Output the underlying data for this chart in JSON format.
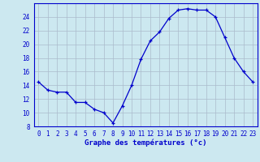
{
  "x": [
    0,
    1,
    2,
    3,
    4,
    5,
    6,
    7,
    8,
    9,
    10,
    11,
    12,
    13,
    14,
    15,
    16,
    17,
    18,
    19,
    20,
    21,
    22,
    23
  ],
  "y": [
    14.5,
    13.3,
    13.0,
    13.0,
    11.5,
    11.5,
    10.5,
    10.0,
    8.5,
    11.0,
    14.0,
    17.8,
    20.5,
    21.8,
    23.8,
    25.0,
    25.2,
    25.0,
    25.0,
    24.0,
    21.0,
    18.0,
    16.0,
    14.5
  ],
  "xlabel": "Graphe des températures (°c)",
  "ylim": [
    8,
    26
  ],
  "xlim": [
    -0.5,
    23.5
  ],
  "yticks": [
    8,
    10,
    12,
    14,
    16,
    18,
    20,
    22,
    24
  ],
  "xticks": [
    0,
    1,
    2,
    3,
    4,
    5,
    6,
    7,
    8,
    9,
    10,
    11,
    12,
    13,
    14,
    15,
    16,
    17,
    18,
    19,
    20,
    21,
    22,
    23
  ],
  "line_color": "#0000cc",
  "marker_color": "#0000cc",
  "bg_plot": "#cce8f0",
  "bg_fig": "#cce8f0",
  "grid_color": "#aabbcc",
  "axis_color": "#0000cc",
  "label_color": "#0000cc",
  "tick_fontsize": 5.5,
  "xlabel_fontsize": 6.5
}
